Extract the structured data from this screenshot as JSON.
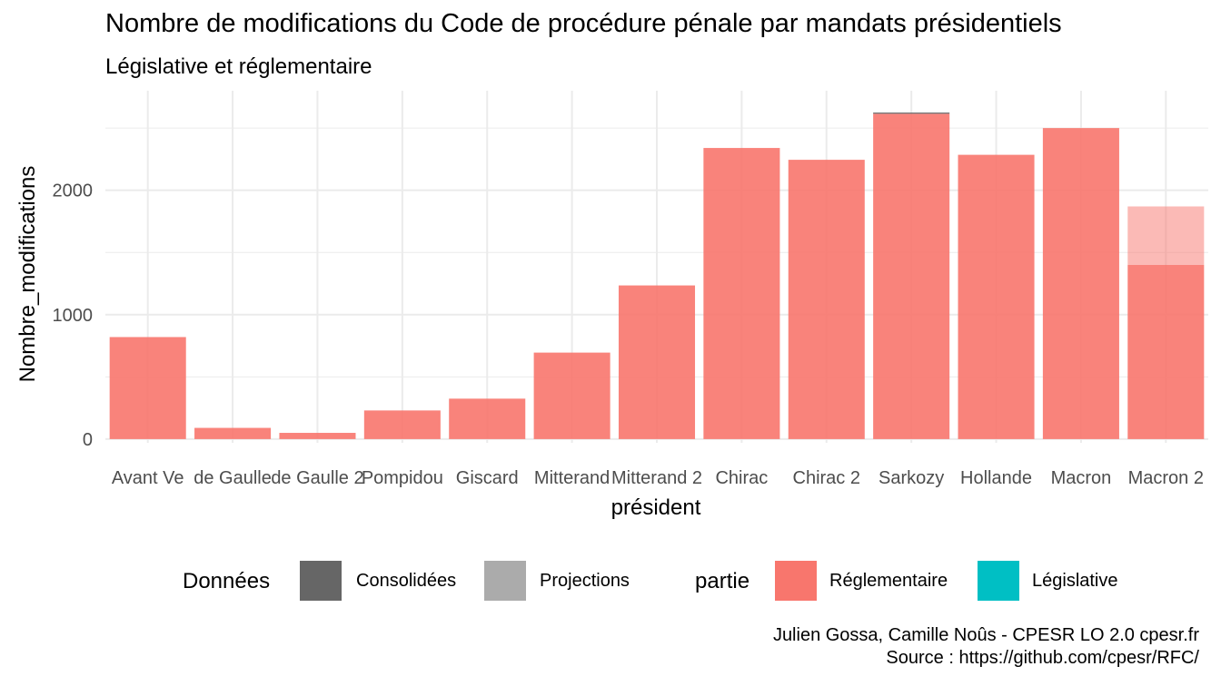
{
  "chart_data": {
    "type": "bar",
    "title": "Nombre de modifications du Code de procédure pénale par mandats présidentiels",
    "subtitle": "Législative et réglementaire",
    "xlabel": "président",
    "ylabel": "Nombre_modifications",
    "categories": [
      "Avant Ve",
      "de Gaulle",
      "de Gaulle 2",
      "Pompidou",
      "Giscard",
      "Mitterand",
      "Mitterand 2",
      "Chirac",
      "Chirac 2",
      "Sarkozy",
      "Hollande",
      "Macron",
      "Macron 2"
    ],
    "series": [
      {
        "partie": "Réglementaire",
        "donnees": "Consolidées",
        "values": [
          820,
          90,
          50,
          230,
          325,
          695,
          1235,
          2340,
          2245,
          2615,
          2285,
          2500,
          1400
        ]
      },
      {
        "partie": "Législative",
        "donnees": "Consolidées",
        "values": [
          0,
          0,
          0,
          0,
          0,
          0,
          0,
          0,
          0,
          10,
          0,
          0,
          0
        ]
      },
      {
        "partie": "Réglementaire",
        "donnees": "Projections",
        "values": [
          0,
          0,
          0,
          0,
          0,
          0,
          0,
          0,
          0,
          0,
          0,
          0,
          470
        ]
      }
    ],
    "yticks": [
      0,
      1000,
      2000
    ],
    "ylim": [
      -30,
      2800
    ],
    "grid": true,
    "legend_position": "bottom",
    "colors": {
      "reglementaire": "#F8766D",
      "legislative": "#00BFC4",
      "consolidees": "#666666",
      "projections": "#ABABAB",
      "grid": "#EBEBEB"
    }
  },
  "legend": {
    "donnees_title": "Données",
    "donnees_items": [
      "Consolidées",
      "Projections"
    ],
    "partie_title": "partie",
    "partie_items": [
      "Réglementaire",
      "Législative"
    ]
  },
  "caption": {
    "line1": "Julien Gossa, Camille Noûs - CPESR LO 2.0 cpesr.fr",
    "line2": "Source : https://github.com/cpesr/RFC/"
  }
}
